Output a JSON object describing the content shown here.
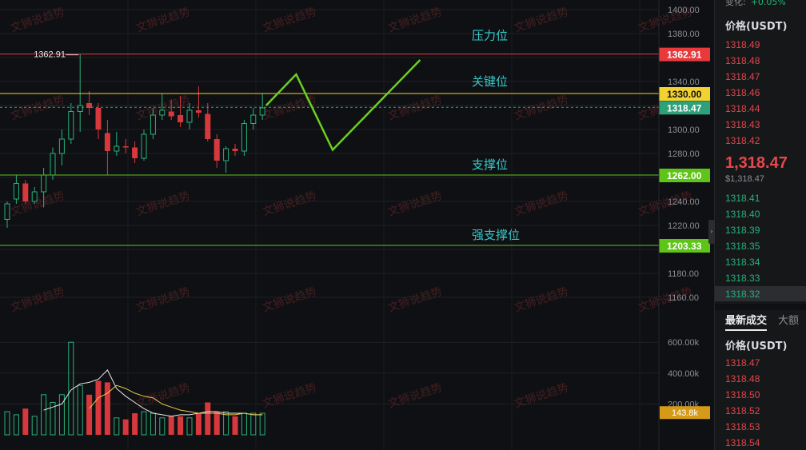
{
  "chart_data": {
    "type": "candlestick",
    "ylim": [
      1155,
      1405
    ],
    "y_ticks": [
      "1160.00",
      "1180.00",
      "1200.00",
      "1220.00",
      "1240.00",
      "1260.00",
      "1280.00",
      "1300.00",
      "1320.00",
      "1340.00",
      "1360.00",
      "1380.00",
      "1400.00"
    ],
    "y_tick_values": [
      1160,
      1180,
      1200,
      1220,
      1240,
      1260,
      1280,
      1300,
      1320,
      1340,
      1360,
      1380,
      1400
    ],
    "high_marker": {
      "label": "1362.91",
      "value": 1362.91
    },
    "levels": [
      {
        "name": "压力位",
        "value": 1362.91,
        "tag": "1362.91",
        "color": "#e8393d"
      },
      {
        "name": "关键位",
        "value": 1330.0,
        "tag": "1330.00",
        "color": "#f2d230"
      },
      {
        "name": "支撑位",
        "value": 1262.0,
        "tag": "1262.00",
        "color": "#5ec417"
      },
      {
        "name": "强支撑位",
        "value": 1203.33,
        "tag": "1203.33",
        "color": "#5ec417"
      }
    ],
    "current_price": {
      "value": 1318.47,
      "tag": "1318.47",
      "color": "#2ea07a"
    },
    "candles": [
      {
        "o": 1225,
        "h": 1240,
        "l": 1218,
        "c": 1238
      },
      {
        "o": 1242,
        "h": 1262,
        "l": 1238,
        "c": 1255
      },
      {
        "o": 1255,
        "h": 1258,
        "l": 1238,
        "c": 1240
      },
      {
        "o": 1240,
        "h": 1252,
        "l": 1238,
        "c": 1248
      },
      {
        "o": 1248,
        "h": 1268,
        "l": 1235,
        "c": 1262
      },
      {
        "o": 1262,
        "h": 1285,
        "l": 1258,
        "c": 1280
      },
      {
        "o": 1280,
        "h": 1300,
        "l": 1270,
        "c": 1292
      },
      {
        "o": 1292,
        "h": 1322,
        "l": 1288,
        "c": 1315
      },
      {
        "o": 1315,
        "h": 1363,
        "l": 1298,
        "c": 1320
      },
      {
        "o": 1322,
        "h": 1332,
        "l": 1312,
        "c": 1318
      },
      {
        "o": 1318,
        "h": 1322,
        "l": 1292,
        "c": 1300
      },
      {
        "o": 1297,
        "h": 1308,
        "l": 1262,
        "c": 1282
      },
      {
        "o": 1282,
        "h": 1298,
        "l": 1278,
        "c": 1286
      },
      {
        "o": 1286,
        "h": 1292,
        "l": 1280,
        "c": 1285
      },
      {
        "o": 1285,
        "h": 1290,
        "l": 1272,
        "c": 1276
      },
      {
        "o": 1276,
        "h": 1300,
        "l": 1274,
        "c": 1296
      },
      {
        "o": 1296,
        "h": 1318,
        "l": 1292,
        "c": 1312
      },
      {
        "o": 1312,
        "h": 1330,
        "l": 1308,
        "c": 1316
      },
      {
        "o": 1315,
        "h": 1325,
        "l": 1308,
        "c": 1311
      },
      {
        "o": 1312,
        "h": 1328,
        "l": 1302,
        "c": 1306
      },
      {
        "o": 1306,
        "h": 1322,
        "l": 1300,
        "c": 1316
      },
      {
        "o": 1316,
        "h": 1336,
        "l": 1310,
        "c": 1314
      },
      {
        "o": 1313,
        "h": 1322,
        "l": 1290,
        "c": 1292
      },
      {
        "o": 1292,
        "h": 1296,
        "l": 1268,
        "c": 1274
      },
      {
        "o": 1274,
        "h": 1286,
        "l": 1264,
        "c": 1284
      },
      {
        "o": 1284,
        "h": 1288,
        "l": 1278,
        "c": 1282
      },
      {
        "o": 1282,
        "h": 1308,
        "l": 1278,
        "c": 1305
      },
      {
        "o": 1305,
        "h": 1318,
        "l": 1300,
        "c": 1312
      },
      {
        "o": 1312,
        "h": 1330,
        "l": 1308,
        "c": 1318
      }
    ],
    "projection": [
      {
        "i": 28.4,
        "v": 1320
      },
      {
        "i": 31.7,
        "v": 1346
      },
      {
        "i": 35.7,
        "v": 1283
      },
      {
        "i": 45.3,
        "v": 1358
      }
    ],
    "volume": {
      "ylim": [
        0,
        640000
      ],
      "ticks": [
        "200.00k",
        "400.00k",
        "600.00k"
      ],
      "tick_values": [
        200000,
        400000,
        600000
      ],
      "current_tag": "143.8k",
      "values": [
        150000,
        130000,
        170000,
        120000,
        260000,
        210000,
        260000,
        600000,
        320000,
        260000,
        350000,
        340000,
        110000,
        100000,
        140000,
        150000,
        140000,
        110000,
        120000,
        120000,
        110000,
        140000,
        210000,
        150000,
        150000,
        120000,
        140000,
        140000,
        140000
      ],
      "ma_fast": [
        null,
        null,
        null,
        null,
        160000,
        180000,
        200000,
        290000,
        330000,
        340000,
        360000,
        420000,
        300000,
        250000,
        210000,
        170000,
        140000,
        130000,
        120000,
        130000,
        130000,
        140000,
        150000,
        150000,
        140000,
        140000,
        140000,
        130000,
        130000
      ],
      "ma_slow": [
        null,
        null,
        null,
        null,
        null,
        null,
        null,
        null,
        null,
        170000,
        240000,
        270000,
        320000,
        300000,
        270000,
        250000,
        240000,
        200000,
        180000,
        160000,
        150000,
        140000,
        140000,
        140000,
        130000,
        130000,
        140000,
        130000,
        130000
      ]
    },
    "watermark": "文狮说趋势"
  },
  "panel": {
    "change_label": "变化:",
    "change_value": "+0.05%",
    "price_header": "价格(USDT)",
    "asks": [
      "1318.49",
      "1318.48",
      "1318.47",
      "1318.46",
      "1318.44",
      "1318.43",
      "1318.42"
    ],
    "last_price": "1,318.47",
    "last_price_usd": "$1,318.47",
    "bids": [
      "1318.41",
      "1318.40",
      "1318.39",
      "1318.35",
      "1318.34",
      "1318.33",
      "1318.32"
    ],
    "tab_latest": "最新成交",
    "tab_large": "大额",
    "trades_header": "价格(USDT)",
    "trades": [
      "1318.47",
      "1318.48",
      "1318.50",
      "1318.52",
      "1318.53",
      "1318.54"
    ]
  }
}
